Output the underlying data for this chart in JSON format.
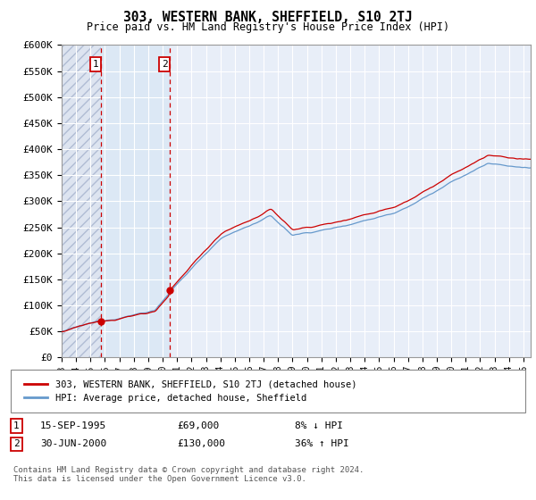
{
  "title": "303, WESTERN BANK, SHEFFIELD, S10 2TJ",
  "subtitle": "Price paid vs. HM Land Registry's House Price Index (HPI)",
  "ylabel_ticks": [
    "£0",
    "£50K",
    "£100K",
    "£150K",
    "£200K",
    "£250K",
    "£300K",
    "£350K",
    "£400K",
    "£450K",
    "£500K",
    "£550K",
    "£600K"
  ],
  "ylim": [
    0,
    600000
  ],
  "xlim_start": 1993.0,
  "xlim_end": 2025.5,
  "sale1_date": 1995.708,
  "sale1_price": 69000,
  "sale2_date": 2000.497,
  "sale2_price": 130000,
  "legend_line1": "303, WESTERN BANK, SHEFFIELD, S10 2TJ (detached house)",
  "legend_line2": "HPI: Average price, detached house, Sheffield",
  "table_row1_num": "1",
  "table_row1_date": "15-SEP-1995",
  "table_row1_price": "£69,000",
  "table_row1_hpi": "8% ↓ HPI",
  "table_row2_num": "2",
  "table_row2_date": "30-JUN-2000",
  "table_row2_price": "£130,000",
  "table_row2_hpi": "36% ↑ HPI",
  "footnote": "Contains HM Land Registry data © Crown copyright and database right 2024.\nThis data is licensed under the Open Government Licence v3.0.",
  "hatch_bg": "#dde4f0",
  "plot_bg": "#e8eef8",
  "red_color": "#cc0000",
  "blue_color": "#6699cc",
  "grid_color": "#ffffff",
  "hatch_edge": "#b0bcd4"
}
